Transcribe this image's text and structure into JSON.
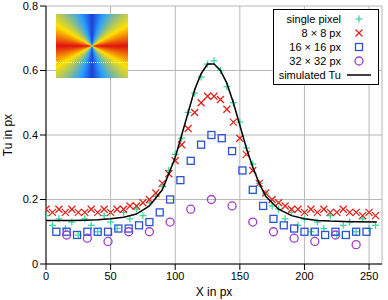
{
  "chart_data": {
    "type": "scatter",
    "x_label": "X in px",
    "y_label": "Tu in px",
    "xlim": [
      0,
      260
    ],
    "xticks": [
      0,
      50,
      100,
      150,
      200,
      250
    ],
    "ylim": [
      0,
      0.8
    ],
    "yticks": [
      0,
      0.2,
      0.4,
      0.6,
      0.8
    ],
    "grid": true,
    "legend": "top right",
    "series": [
      {
        "name": "single pixel",
        "type": "scatter",
        "marker": "plus",
        "color": "#3fd89c",
        "x": [
          0,
          5,
          10,
          15,
          20,
          25,
          30,
          35,
          40,
          45,
          50,
          55,
          60,
          65,
          70,
          75,
          80,
          85,
          90,
          95,
          100,
          105,
          110,
          115,
          120,
          125,
          130,
          135,
          140,
          145,
          150,
          155,
          160,
          165,
          170,
          175,
          180,
          185,
          190,
          195,
          200,
          205,
          210,
          215,
          220,
          225,
          230,
          235,
          240,
          245,
          250,
          255
        ],
        "values": [
          0.15,
          0.12,
          0.14,
          0.11,
          0.13,
          0.09,
          0.14,
          0.12,
          0.1,
          0.15,
          0.13,
          0.11,
          0.16,
          0.14,
          0.17,
          0.15,
          0.19,
          0.21,
          0.24,
          0.29,
          0.34,
          0.39,
          0.47,
          0.53,
          0.58,
          0.62,
          0.63,
          0.6,
          0.55,
          0.5,
          0.44,
          0.36,
          0.31,
          0.25,
          0.22,
          0.18,
          0.17,
          0.14,
          0.16,
          0.12,
          0.14,
          0.1,
          0.13,
          0.11,
          0.15,
          0.09,
          0.12,
          0.13,
          0.1,
          0.14,
          0.11,
          0.12
        ]
      },
      {
        "name": "8 × 8 px",
        "type": "scatter",
        "marker": "x",
        "color": "#e3241b",
        "x": [
          0,
          5,
          10,
          15,
          20,
          25,
          30,
          35,
          40,
          45,
          50,
          55,
          60,
          65,
          70,
          75,
          80,
          85,
          90,
          95,
          100,
          105,
          110,
          115,
          120,
          125,
          130,
          135,
          140,
          145,
          150,
          155,
          160,
          165,
          170,
          175,
          180,
          185,
          190,
          195,
          200,
          205,
          210,
          215,
          220,
          225,
          230,
          235,
          240,
          245,
          250,
          255
        ],
        "values": [
          0.17,
          0.16,
          0.17,
          0.16,
          0.17,
          0.16,
          0.16,
          0.17,
          0.16,
          0.17,
          0.16,
          0.17,
          0.17,
          0.18,
          0.18,
          0.19,
          0.2,
          0.22,
          0.25,
          0.28,
          0.32,
          0.37,
          0.42,
          0.47,
          0.5,
          0.52,
          0.52,
          0.51,
          0.48,
          0.44,
          0.39,
          0.34,
          0.29,
          0.25,
          0.22,
          0.2,
          0.19,
          0.18,
          0.17,
          0.17,
          0.16,
          0.17,
          0.16,
          0.17,
          0.16,
          0.16,
          0.17,
          0.16,
          0.16,
          0.15,
          0.16,
          0.15
        ]
      },
      {
        "name": "16 × 16 px",
        "type": "scatter",
        "marker": "square",
        "color": "#2a52d4",
        "x": [
          8,
          16,
          24,
          32,
          40,
          48,
          56,
          64,
          72,
          80,
          88,
          96,
          104,
          112,
          120,
          128,
          136,
          144,
          152,
          160,
          168,
          176,
          184,
          192,
          200,
          208,
          216,
          224,
          232,
          240,
          248
        ],
        "values": [
          0.1,
          0.1,
          0.09,
          0.1,
          0.1,
          0.1,
          0.11,
          0.11,
          0.12,
          0.13,
          0.16,
          0.2,
          0.26,
          0.32,
          0.37,
          0.4,
          0.39,
          0.35,
          0.29,
          0.23,
          0.18,
          0.14,
          0.12,
          0.11,
          0.1,
          0.1,
          0.09,
          0.1,
          0.09,
          0.1,
          0.1
        ]
      },
      {
        "name": "32 × 32 px",
        "type": "scatter",
        "marker": "circle",
        "color": "#a03ccf",
        "x": [
          16,
          32,
          48,
          64,
          80,
          96,
          112,
          128,
          144,
          160,
          176,
          192,
          208,
          224,
          240
        ],
        "values": [
          0.09,
          0.08,
          0.07,
          0.1,
          0.1,
          0.13,
          0.17,
          0.2,
          0.18,
          0.13,
          0.1,
          0.08,
          0.07,
          0.09,
          0.06
        ]
      },
      {
        "name": "simulated Tu",
        "type": "line",
        "marker": "none",
        "color": "#000000",
        "x": [
          0,
          10,
          20,
          30,
          40,
          50,
          60,
          70,
          80,
          90,
          95,
          100,
          105,
          110,
          115,
          120,
          125,
          130,
          135,
          140,
          145,
          150,
          155,
          160,
          165,
          170,
          180,
          190,
          200,
          210,
          220,
          230,
          240,
          256
        ],
        "values": [
          0.135,
          0.135,
          0.135,
          0.136,
          0.137,
          0.14,
          0.145,
          0.155,
          0.18,
          0.23,
          0.28,
          0.33,
          0.4,
          0.47,
          0.54,
          0.59,
          0.62,
          0.62,
          0.6,
          0.56,
          0.5,
          0.43,
          0.36,
          0.3,
          0.25,
          0.21,
          0.17,
          0.15,
          0.14,
          0.135,
          0.133,
          0.132,
          0.131,
          0.13
        ]
      }
    ]
  }
}
